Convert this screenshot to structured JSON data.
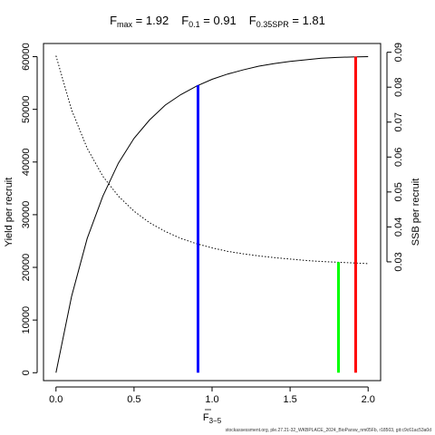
{
  "chart_data": {
    "type": "line",
    "title": {
      "fmax_label": "F",
      "fmax_sub": "max",
      "fmax_value": " = 1.92",
      "f01_label": "F",
      "f01_sub": "0.1",
      "f01_value": " = 0.91",
      "fspr_label": "F",
      "fspr_sub": "0.35SPR",
      "fspr_value": " = 1.81"
    },
    "xlabel": {
      "main": "F",
      "sub": "3−5"
    },
    "ylabel_left": "Yield per recruit",
    "ylabel_right": "SSB per recruit",
    "xlim": [
      -0.08,
      2.08
    ],
    "ylim_left": [
      -1500,
      62500
    ],
    "ylim_right": [
      -0.004,
      0.0925
    ],
    "x_ticks": [
      0,
      0.5,
      1,
      1.5,
      2
    ],
    "x_tick_labels": [
      "0.0",
      "0.5",
      "1.0",
      "1.5",
      "2.0"
    ],
    "y_left_ticks": [
      0,
      10000,
      20000,
      30000,
      40000,
      50000,
      60000
    ],
    "y_left_tick_labels": [
      "0",
      "10000",
      "20000",
      "30000",
      "40000",
      "50000",
      "60000"
    ],
    "y_right_ticks": [
      0.03,
      0.04,
      0.05,
      0.06,
      0.07,
      0.08,
      0.09
    ],
    "y_right_tick_labels": [
      "0.03",
      "0.04",
      "0.05",
      "0.06",
      "0.07",
      "0.08",
      "0.09"
    ],
    "series": [
      {
        "axis": "left",
        "style": "solid",
        "x": [
          0,
          0.1,
          0.2,
          0.3,
          0.4,
          0.5,
          0.6,
          0.7,
          0.8,
          0.9,
          1.0,
          1.1,
          1.2,
          1.3,
          1.4,
          1.5,
          1.6,
          1.7,
          1.8,
          1.9,
          2.0
        ],
        "y": [
          0,
          14500,
          25500,
          33500,
          39800,
          44500,
          48000,
          50800,
          52800,
          54400,
          55700,
          56700,
          57500,
          58200,
          58700,
          59100,
          59400,
          59700,
          59850,
          59950,
          60000
        ]
      },
      {
        "axis": "right",
        "style": "dotted",
        "x": [
          0,
          0.1,
          0.2,
          0.3,
          0.4,
          0.5,
          0.6,
          0.7,
          0.8,
          0.9,
          1.0,
          1.1,
          1.2,
          1.3,
          1.4,
          1.5,
          1.6,
          1.7,
          1.8,
          1.9,
          2.0
        ],
        "y": [
          0.089,
          0.0735,
          0.0625,
          0.0545,
          0.0488,
          0.0445,
          0.0412,
          0.0387,
          0.0367,
          0.0352,
          0.034,
          0.033,
          0.0323,
          0.0317,
          0.0312,
          0.0308,
          0.0304,
          0.0301,
          0.0299,
          0.0297,
          0.0295
        ]
      }
    ],
    "reference_lines": [
      {
        "name": "F0.1",
        "x": 0.91,
        "y_top": 54600,
        "color": "#0000ff"
      },
      {
        "name": "F0.35SPR",
        "x": 1.81,
        "y_top": 21000,
        "color": "#00ff00"
      },
      {
        "name": "Fmax",
        "x": 1.92,
        "y_top": 60000,
        "color": "#ff0000"
      }
    ],
    "grid": false,
    "legend": "none"
  },
  "footer": "stockassessment.org, ple.27.21-32_WKBPLACE_2024_BioParsw_nm05Fb, r18503, git:c9c61ac53a0d"
}
